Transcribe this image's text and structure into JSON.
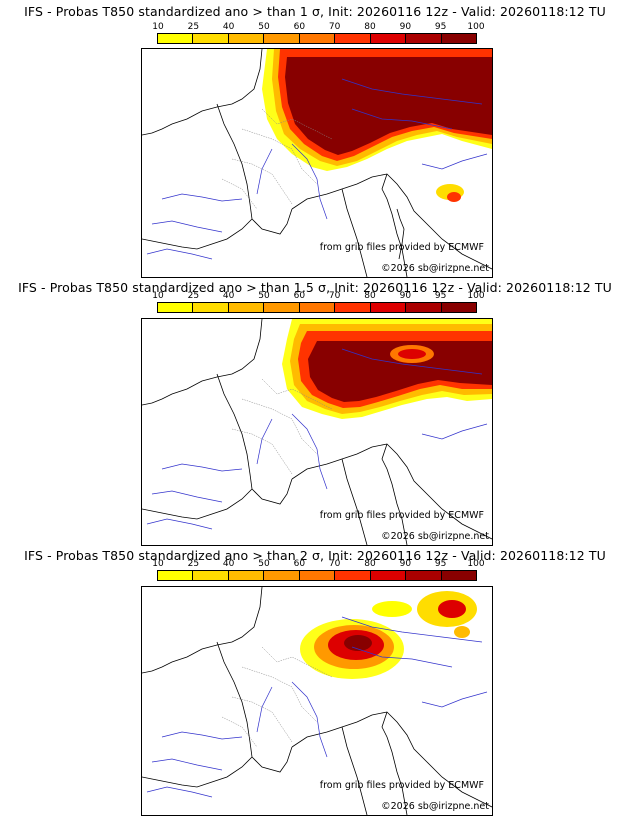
{
  "colorbar": {
    "ticks": [
      "10",
      "25",
      "40",
      "50",
      "60",
      "70",
      "80",
      "90",
      "95",
      "100"
    ],
    "colors": [
      "#ffff00",
      "#ffdd00",
      "#ffbb00",
      "#ff9900",
      "#ff7700",
      "#ff3300",
      "#dd0000",
      "#aa0000",
      "#880000"
    ]
  },
  "panels": [
    {
      "title": "IFS - Probas T850  standardized ano > than 1 σ, Init: 20260116 12z - Valid: 20260118:12 TU",
      "source": "from grib files provided by ECMWF",
      "copyright": "©2026 sb@irizpne.net"
    },
    {
      "title": "IFS - Probas T850  standardized ano > than 1.5 σ, Init: 20260116 12z - Valid: 20260118:12 TU",
      "source": "from grib files provided by ECMWF",
      "copyright": "©2026 sb@irizpne.net"
    },
    {
      "title": "IFS - Probas T850  standardized ano > than 2 σ, Init: 20260116 12z - Valid: 20260118:12 TU",
      "source": "from grib files provided by ECMWF",
      "copyright": "©2026 sb@irizpne.net"
    }
  ],
  "map_legend": {
    "coast_color": "#000000",
    "river_color": "#3333cc",
    "border_color": "#666666"
  }
}
